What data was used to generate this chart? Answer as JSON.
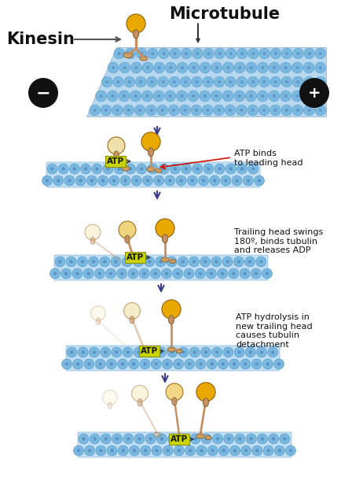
{
  "bg_color": "#ffffff",
  "mt_fill": "#a8d4f0",
  "mt_circle": "#7ab8e0",
  "mt_circle_dark": "#4a90c0",
  "mt_circle_center": "#3060a0",
  "head_gold": "#e8a800",
  "head_light": "#f0d070",
  "head_pale": "#f5e8b8",
  "head_pale2": "#eedda0",
  "stalk_color": "#c89060",
  "stalk_dark": "#a06830",
  "foot_color": "#d0a060",
  "atp_bg": "#c8d400",
  "arrow_color": "#3a3a8a",
  "red_arrow": "#cc1100",
  "title_kinesin": "Kinesin",
  "title_micro": "Microtubule",
  "label1": "ATP binds\nto leading head",
  "label2": "Trailing head swings\n180º, binds tubulin\nand releases ADP",
  "label3": "ATP hydrolysis in\nnew trailing head\ncauses tubulin\ndetachment",
  "figw": 4.34,
  "figh": 6.06,
  "dpi": 100
}
